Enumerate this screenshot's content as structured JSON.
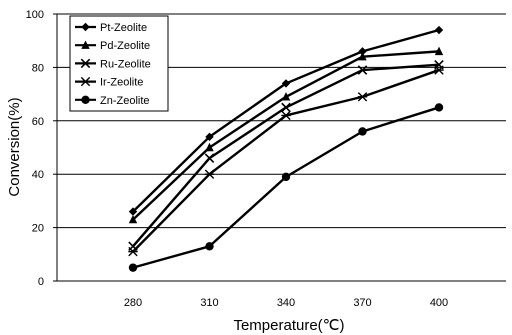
{
  "chart_data": {
    "type": "line",
    "x": [
      280,
      310,
      340,
      370,
      400
    ],
    "xlabel": "Temperature(℃)",
    "ylabel": "Conversion(%)",
    "ylim": [
      0,
      100
    ],
    "yticks": [
      0,
      20,
      40,
      60,
      80,
      100
    ],
    "grid": "horizontal",
    "legend_position": "top-left",
    "series": [
      {
        "name": "Pt-Zeolite",
        "marker": "diamond",
        "values": [
          26,
          54,
          74,
          86,
          94
        ]
      },
      {
        "name": "Pd-Zeolite",
        "marker": "triangle",
        "values": [
          23,
          50,
          69,
          84,
          86
        ]
      },
      {
        "name": "Ru-Zeolite",
        "marker": "x",
        "values": [
          13,
          46,
          65,
          79,
          81
        ]
      },
      {
        "name": "Ir-Zeolite",
        "marker": "asterisk",
        "values": [
          11,
          40,
          62,
          69,
          79
        ]
      },
      {
        "name": "Zn-Zeolite",
        "marker": "circle",
        "values": [
          5,
          13,
          39,
          56,
          65
        ]
      }
    ]
  }
}
